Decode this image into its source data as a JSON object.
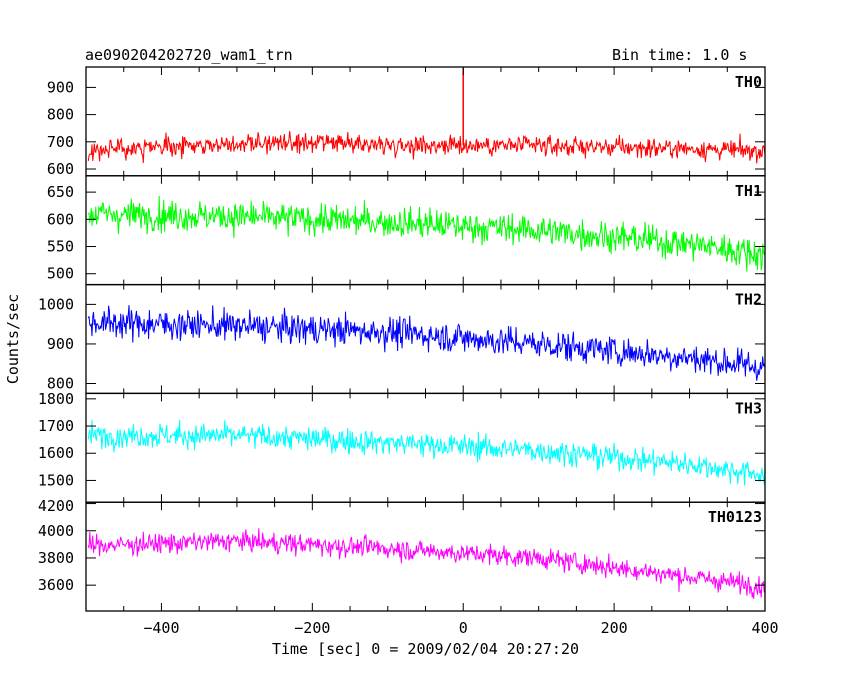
{
  "header": {
    "left_title": "ae090204202720_wam1_trn",
    "right_title": "Bin time: 1.0 s"
  },
  "chart_data": {
    "type": "line",
    "title": "ae090204202720_wam1_trn",
    "bin_time": "Bin time: 1.0 s",
    "xlabel": "Time [sec] 0 = 2009/02/04 20:27:20",
    "ylabel": "Counts/sec",
    "xlim": [
      -500,
      400
    ],
    "x_ticks": [
      -400,
      -200,
      0,
      200,
      400
    ],
    "panels": [
      {
        "name": "TH0",
        "color": "#ff0000",
        "ylim": [
          575,
          975
        ],
        "y_ticks": [
          600,
          700,
          800,
          900
        ],
        "trend": [
          [
            -497,
            665
          ],
          [
            -300,
            695
          ],
          [
            -100,
            690
          ],
          [
            100,
            685
          ],
          [
            300,
            675
          ],
          [
            400,
            665
          ]
        ],
        "noise_sd": 35,
        "spike": {
          "x": 0,
          "y": 1000
        }
      },
      {
        "name": "TH1",
        "color": "#00ff00",
        "ylim": [
          480,
          680
        ],
        "y_ticks": [
          500,
          550,
          600,
          650
        ],
        "trend": [
          [
            -497,
            610
          ],
          [
            -300,
            605
          ],
          [
            -100,
            595
          ],
          [
            100,
            580
          ],
          [
            300,
            555
          ],
          [
            400,
            535
          ]
        ],
        "noise_sd": 28
      },
      {
        "name": "TH2",
        "color": "#0000ff",
        "ylim": [
          775,
          1050
        ],
        "y_ticks": [
          800,
          900,
          1000
        ],
        "trend": [
          [
            -497,
            955
          ],
          [
            -300,
            945
          ],
          [
            -100,
            930
          ],
          [
            100,
            900
          ],
          [
            300,
            865
          ],
          [
            400,
            840
          ]
        ],
        "noise_sd": 38
      },
      {
        "name": "TH3",
        "color": "#00ffff",
        "ylim": [
          1420,
          1820
        ],
        "y_ticks": [
          1500,
          1600,
          1700,
          1800
        ],
        "trend": [
          [
            -497,
            1665
          ],
          [
            -300,
            1665
          ],
          [
            -100,
            1640
          ],
          [
            100,
            1610
          ],
          [
            300,
            1560
          ],
          [
            400,
            1520
          ]
        ],
        "noise_sd": 45
      },
      {
        "name": "TH0123",
        "color": "#ff00ff",
        "ylim": [
          3410,
          4210
        ],
        "y_ticks": [
          3600,
          3800,
          4000,
          4200
        ],
        "trend": [
          [
            -497,
            3890
          ],
          [
            -300,
            3925
          ],
          [
            -100,
            3870
          ],
          [
            100,
            3800
          ],
          [
            300,
            3660
          ],
          [
            400,
            3590
          ]
        ],
        "noise_sd": 75
      }
    ]
  }
}
